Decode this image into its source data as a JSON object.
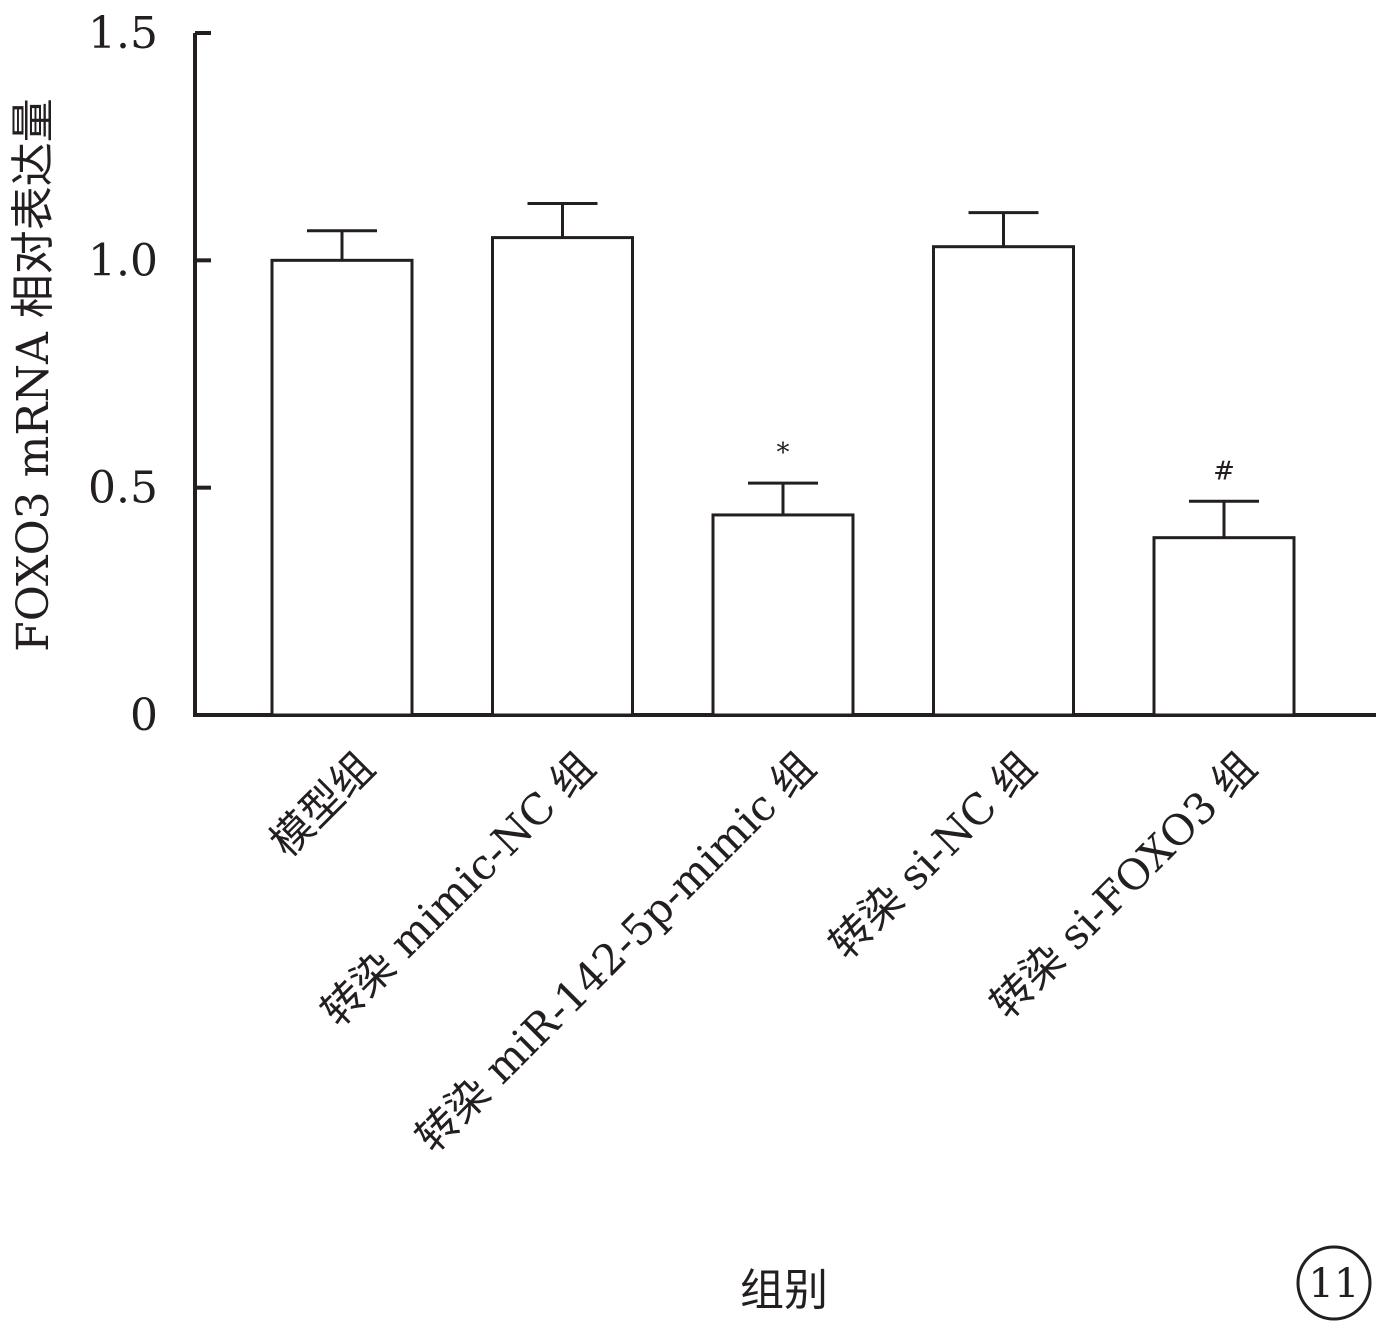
{
  "chart_data": {
    "type": "bar",
    "categories": [
      "模型组",
      "转染 mimic-NC 组",
      "转染 miR-142-5p-mimic 组",
      "转染 si-NC 组",
      "转染 si-FOXO3 组"
    ],
    "values": [
      1.0,
      1.05,
      0.44,
      1.03,
      0.39
    ],
    "errors": [
      0.065,
      0.075,
      0.07,
      0.075,
      0.08
    ],
    "annotations": [
      "",
      "",
      "*",
      "",
      "#"
    ],
    "xlabel": "组别",
    "ylabel": "FOXO3 mRNA 相对表达量",
    "ylim": [
      0,
      1.5
    ],
    "yticks": [
      0,
      0.5,
      1.0,
      1.5
    ],
    "ytick_labels": [
      "0",
      "0.5",
      "1.0",
      "1.5"
    ],
    "bar_fill": "#ffffff",
    "line_color": "#231f20"
  },
  "panel_label": "11"
}
